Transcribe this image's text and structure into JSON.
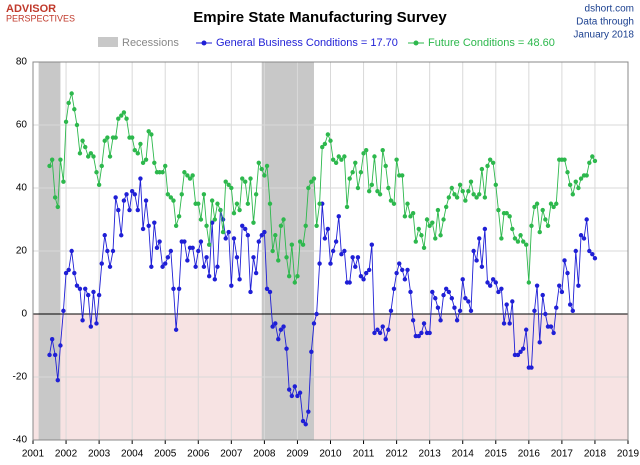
{
  "chart_data": {
    "type": "line",
    "title": "Empire State Manufacturing Survey",
    "brand": [
      "ADVISOR",
      "PERSPECTIVES"
    ],
    "source": [
      "dshort.com",
      "Data through",
      "January 2018"
    ],
    "recession_label": "Recessions",
    "recession_color": "#c8c8c8",
    "recessions": [
      [
        2001.17,
        2001.83
      ],
      [
        2007.92,
        2009.5
      ]
    ],
    "xlim": [
      2001,
      2019
    ],
    "xticks": [
      2001,
      2002,
      2003,
      2004,
      2005,
      2006,
      2007,
      2008,
      2009,
      2010,
      2011,
      2012,
      2013,
      2014,
      2015,
      2016,
      2017,
      2018,
      2019
    ],
    "ylim": [
      -40,
      80
    ],
    "yticks": [
      -40,
      -20,
      0,
      20,
      40,
      60,
      80
    ],
    "grid": true,
    "x": [
      2001.5,
      2001.58,
      2001.67,
      2001.75,
      2001.83,
      2001.92,
      2002,
      2002.08,
      2002.17,
      2002.25,
      2002.33,
      2002.42,
      2002.5,
      2002.58,
      2002.67,
      2002.75,
      2002.83,
      2002.92,
      2003,
      2003.08,
      2003.17,
      2003.25,
      2003.33,
      2003.42,
      2003.5,
      2003.58,
      2003.67,
      2003.75,
      2003.83,
      2003.92,
      2004,
      2004.08,
      2004.17,
      2004.25,
      2004.33,
      2004.42,
      2004.5,
      2004.58,
      2004.67,
      2004.75,
      2004.83,
      2004.92,
      2005,
      2005.08,
      2005.17,
      2005.25,
      2005.33,
      2005.42,
      2005.5,
      2005.58,
      2005.67,
      2005.75,
      2005.83,
      2005.92,
      2006,
      2006.08,
      2006.17,
      2006.25,
      2006.33,
      2006.42,
      2006.5,
      2006.58,
      2006.67,
      2006.75,
      2006.83,
      2006.92,
      2007,
      2007.08,
      2007.17,
      2007.25,
      2007.33,
      2007.42,
      2007.5,
      2007.58,
      2007.67,
      2007.75,
      2007.83,
      2007.92,
      2008,
      2008.08,
      2008.17,
      2008.25,
      2008.33,
      2008.42,
      2008.5,
      2008.58,
      2008.67,
      2008.75,
      2008.83,
      2008.92,
      2009,
      2009.08,
      2009.17,
      2009.25,
      2009.33,
      2009.42,
      2009.5,
      2009.58,
      2009.67,
      2009.75,
      2009.83,
      2009.92,
      2010,
      2010.08,
      2010.17,
      2010.25,
      2010.33,
      2010.42,
      2010.5,
      2010.58,
      2010.67,
      2010.75,
      2010.83,
      2010.92,
      2011,
      2011.08,
      2011.17,
      2011.25,
      2011.33,
      2011.42,
      2011.5,
      2011.58,
      2011.67,
      2011.75,
      2011.83,
      2011.92,
      2012,
      2012.08,
      2012.17,
      2012.25,
      2012.33,
      2012.42,
      2012.5,
      2012.58,
      2012.67,
      2012.75,
      2012.83,
      2012.92,
      2013,
      2013.08,
      2013.17,
      2013.25,
      2013.33,
      2013.42,
      2013.5,
      2013.58,
      2013.67,
      2013.75,
      2013.83,
      2013.92,
      2014,
      2014.08,
      2014.17,
      2014.25,
      2014.33,
      2014.42,
      2014.5,
      2014.58,
      2014.67,
      2014.75,
      2014.83,
      2014.92,
      2015,
      2015.08,
      2015.17,
      2015.25,
      2015.33,
      2015.42,
      2015.5,
      2015.58,
      2015.67,
      2015.75,
      2015.83,
      2015.92,
      2016,
      2016.08,
      2016.17,
      2016.25,
      2016.33,
      2016.42,
      2016.5,
      2016.58,
      2016.67,
      2016.75,
      2016.83,
      2016.92,
      2017,
      2017.08,
      2017.17,
      2017.25,
      2017.33,
      2017.42,
      2017.5,
      2017.58,
      2017.67,
      2017.75,
      2017.83,
      2017.92,
      2018
    ],
    "series": [
      {
        "name": "General Business Conditions = 17.70",
        "color": "#1f1fd6",
        "values": [
          -13,
          -8,
          -13,
          -21,
          -10,
          1,
          13,
          14,
          20,
          13,
          9,
          8,
          -2,
          8,
          6,
          -4,
          7,
          -3,
          6,
          16,
          25,
          20,
          15,
          20,
          37,
          33,
          25,
          36,
          38,
          33,
          39,
          38,
          33,
          43,
          27,
          36,
          28,
          15,
          29,
          21,
          23,
          15,
          16,
          18,
          20,
          8,
          -5,
          8,
          23,
          23,
          17,
          21,
          21,
          15,
          20,
          23,
          15,
          18,
          12,
          29,
          11,
          15,
          33,
          30,
          24,
          26,
          9,
          24,
          18,
          11,
          28,
          27,
          25,
          7,
          18,
          13,
          23,
          25,
          26,
          8,
          7,
          -4,
          -3,
          -8,
          -5,
          -4,
          -11,
          -24,
          -26,
          -23,
          -26,
          -25,
          -34,
          -35,
          -31,
          -12,
          -3,
          0,
          16,
          35,
          24,
          27,
          16,
          20,
          23,
          31,
          19,
          20,
          10,
          10,
          18,
          15,
          18,
          12,
          11,
          13,
          14,
          22,
          -6,
          -5,
          -6,
          -4,
          -8,
          -5,
          1,
          8,
          13,
          16,
          14,
          11,
          14,
          7,
          -2,
          -7,
          -7,
          -6,
          -3,
          -6,
          -6,
          7,
          5,
          2,
          -2,
          6,
          8,
          7,
          5,
          2,
          -2,
          1,
          11,
          5,
          4,
          1,
          20,
          17,
          24,
          15,
          27,
          10,
          9,
          11,
          10,
          7,
          8,
          -3,
          3,
          -3,
          4,
          -13,
          -13,
          -12,
          -11,
          -5,
          -17,
          -17,
          1,
          9,
          -9,
          6,
          0,
          -4,
          -4,
          -6,
          2,
          9,
          7,
          17,
          13,
          3,
          1,
          20,
          9,
          25,
          24,
          30,
          20,
          19,
          17.7
        ]
      },
      {
        "name": "Future Conditions = 48.60",
        "color": "#2db84d",
        "values": [
          47,
          49,
          37,
          34,
          49,
          42,
          61,
          67,
          70,
          65,
          60,
          51,
          55,
          53,
          50,
          51,
          50,
          45,
          41,
          47,
          55,
          56,
          50,
          56,
          56,
          62,
          63,
          64,
          62,
          56,
          56,
          52,
          51,
          54,
          48,
          49,
          58,
          57,
          48,
          45,
          45,
          45,
          47,
          38,
          37,
          36,
          28,
          31,
          38,
          45,
          44,
          43,
          44,
          35,
          35,
          30,
          38,
          28,
          22,
          36,
          30,
          35,
          33,
          26,
          42,
          41,
          40,
          32,
          35,
          33,
          43,
          42,
          35,
          43,
          29,
          38,
          48,
          46,
          44,
          47,
          35,
          20,
          25,
          17,
          28,
          30,
          18,
          12,
          22,
          10,
          12,
          23,
          22,
          28,
          40,
          42,
          43,
          28,
          35,
          53,
          54,
          57,
          55,
          49,
          48,
          50,
          49,
          50,
          34,
          43,
          45,
          48,
          40,
          45,
          51,
          52,
          39,
          41,
          50,
          39,
          38,
          52,
          47,
          40,
          36,
          35,
          49,
          44,
          44,
          31,
          35,
          31,
          32,
          23,
          27,
          25,
          21,
          30,
          28,
          29,
          24,
          33,
          25,
          30,
          34,
          37,
          40,
          38,
          37,
          41,
          39,
          36,
          39,
          42,
          38,
          37,
          38,
          46,
          37,
          47,
          49,
          48,
          41,
          33,
          24,
          32,
          32,
          31,
          27,
          24,
          23,
          25,
          23,
          22,
          10,
          28,
          34,
          35,
          26,
          33,
          30,
          28,
          35,
          34,
          35,
          49,
          49,
          49,
          45,
          41,
          38,
          42,
          40,
          43,
          44,
          44,
          48,
          50,
          48.6
        ]
      }
    ]
  }
}
